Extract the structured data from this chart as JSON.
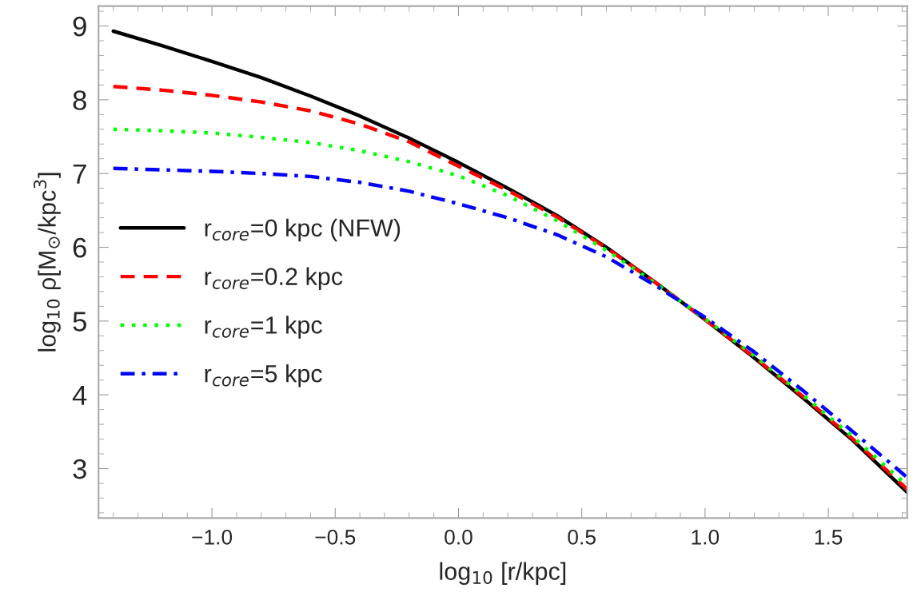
{
  "chart_data": {
    "type": "line",
    "xlabel": "log$_{10}$ [r/kpc]",
    "ylabel": "log$_{10}$ ρ[M$_{⊙}$/kpc$^{3}$]",
    "x": [
      -1.4,
      -1.2,
      -1.0,
      -0.8,
      -0.6,
      -0.4,
      -0.2,
      0.0,
      0.2,
      0.4,
      0.6,
      0.8,
      1.0,
      1.2,
      1.4,
      1.6,
      1.82
    ],
    "series": [
      {
        "name": "r$_{core}$=0 kpc (NFW)",
        "color": "#000000",
        "line_style": "solid",
        "values": [
          8.93,
          8.73,
          8.52,
          8.3,
          8.05,
          7.78,
          7.48,
          7.15,
          6.8,
          6.43,
          6.0,
          5.52,
          5.02,
          4.5,
          3.95,
          3.38,
          2.68
        ]
      },
      {
        "name": "r$_{core}$=0.2 kpc",
        "color": "#ff0000",
        "line_style": "dashed",
        "values": [
          8.18,
          8.13,
          8.06,
          7.97,
          7.85,
          7.67,
          7.43,
          7.1,
          6.77,
          6.41,
          5.99,
          5.52,
          5.02,
          4.51,
          3.97,
          3.4,
          2.72
        ]
      },
      {
        "name": "r$_{core}$=1 kpc",
        "color": "#00ff00",
        "line_style": "dotted",
        "values": [
          7.6,
          7.58,
          7.55,
          7.49,
          7.42,
          7.31,
          7.16,
          6.97,
          6.7,
          6.36,
          5.96,
          5.51,
          5.03,
          4.53,
          3.99,
          3.43,
          2.77
        ]
      },
      {
        "name": "r$_{core}$=5 kpc",
        "color": "#0000ff",
        "line_style": "dashdot",
        "values": [
          7.07,
          7.05,
          7.03,
          7.0,
          6.96,
          6.88,
          6.76,
          6.59,
          6.4,
          6.17,
          5.87,
          5.48,
          5.05,
          4.58,
          4.05,
          3.5,
          2.88
        ]
      }
    ],
    "xlim": [
      -1.46,
      1.82
    ],
    "ylim": [
      2.33,
      9.27
    ],
    "xticks": [
      {
        "value": -1.0,
        "label": "−1.0"
      },
      {
        "value": -0.5,
        "label": "−0.5"
      },
      {
        "value": 0.0,
        "label": "0.0"
      },
      {
        "value": 0.5,
        "label": "0.5"
      },
      {
        "value": 1.0,
        "label": "1.0"
      },
      {
        "value": 1.5,
        "label": "1.5"
      }
    ],
    "yticks": [
      3,
      4,
      5,
      6,
      7,
      8,
      9
    ],
    "grid": false,
    "legend": "left",
    "marker": "none"
  }
}
